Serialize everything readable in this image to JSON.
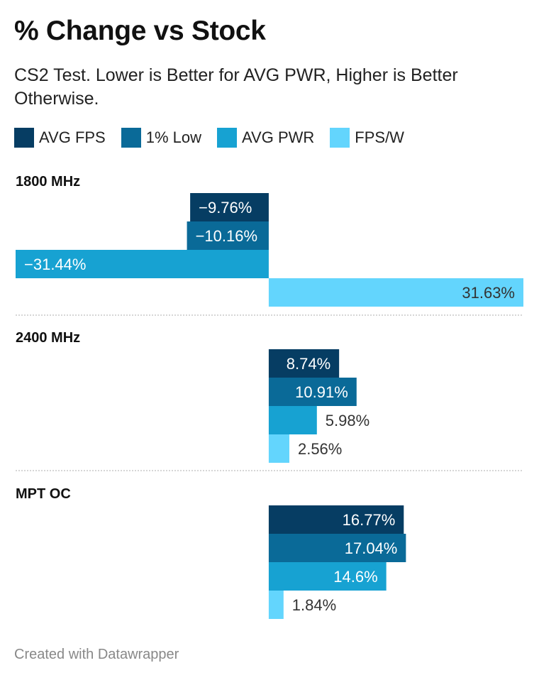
{
  "chart_data": {
    "type": "bar",
    "orientation": "horizontal",
    "title": "% Change vs Stock",
    "subtitle": "CS2 Test. Lower is Better for AVG PWR, Higher is Better Otherwise.",
    "unit": "%",
    "series": [
      {
        "name": "AVG FPS",
        "color": "#063d63"
      },
      {
        "name": "1% Low",
        "color": "#0a6a98"
      },
      {
        "name": "AVG PWR",
        "color": "#17a2d2"
      },
      {
        "name": "FPS/W",
        "color": "#63d5fd"
      }
    ],
    "groups": [
      {
        "label": "1800 MHz",
        "values": [
          -9.76,
          -10.16,
          -31.44,
          31.63
        ],
        "labels": [
          "−9.76%",
          "−10.16%",
          "−31.44%",
          "31.63%"
        ]
      },
      {
        "label": "2400 MHz",
        "values": [
          8.74,
          10.91,
          5.98,
          2.56
        ],
        "labels": [
          "8.74%",
          "10.91%",
          "5.98%",
          "2.56%"
        ]
      },
      {
        "label": "MPT OC",
        "values": [
          16.77,
          17.04,
          14.6,
          1.84
        ],
        "labels": [
          "16.77%",
          "17.04%",
          "14.6%",
          "1.84%"
        ]
      }
    ],
    "xlim": [
      -31.44,
      31.63
    ],
    "legend_position": "top-left"
  },
  "footer": "Created with Datawrapper"
}
